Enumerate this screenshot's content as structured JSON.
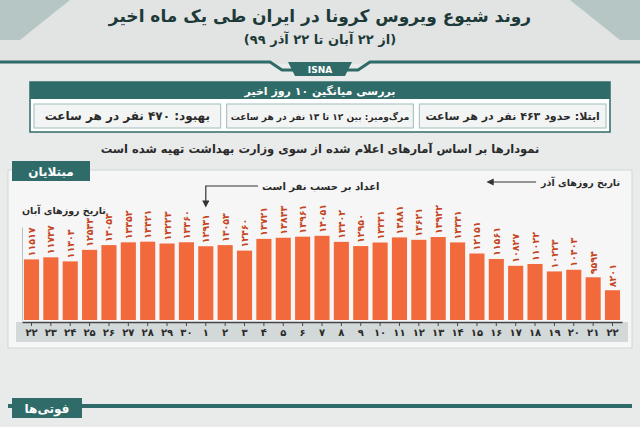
{
  "chart_data": {
    "type": "bar",
    "title": "روند شیوع ویروس کرونا در ایران طی یک ماه اخیر",
    "subtitle": "(از ۲۲ آبان تا ۲۲ آذر ۹۹)",
    "categories": [
      "۲۲",
      "۲۳",
      "۲۴",
      "۲۵",
      "۲۶",
      "۲۷",
      "۲۸",
      "۲۹",
      "۳۰",
      "۱",
      "۲",
      "۳",
      "۴",
      "۵",
      "۶",
      "۷",
      "۸",
      "۹",
      "۱۰",
      "۱۱",
      "۱۲",
      "۱۳",
      "۱۴",
      "۱۵",
      "۱۶",
      "۱۷",
      "۱۸",
      "۱۹",
      "۲۰",
      "۲۱",
      "۲۲"
    ],
    "values": [
      11517,
      11737,
      11303,
      12543,
      13053,
      13352,
      13421,
      13223,
      13360,
      12931,
      13053,
      12460,
      13721,
      13843,
      13961,
      14051,
      13402,
      12950,
      13331,
      13881,
      13621,
      13922,
      13341,
      12151,
      11561,
      10827,
      11022,
      10223,
      10403,
      9594,
      8201
    ],
    "value_labels": [
      "۱۱۵۱۷",
      "۱۱۷۳۷",
      "۱۱۳۰۳",
      "۱۲۵۴۳",
      "۱۳۰۵۳",
      "۱۳۳۵۲",
      "۱۳۴۲۱",
      "۱۳۲۲۳",
      "۱۳۳۶۰",
      "۱۲۹۳۱",
      "۱۳۰۵۳",
      "۱۲۴۶۰",
      "۱۳۷۲۱",
      "۱۳۸۴۳",
      "۱۳۹۶۱",
      "۱۴۰۵۱",
      "۱۳۴۰۲",
      "۱۲۹۵۰",
      "۱۳۳۳۱",
      "۱۳۸۸۱",
      "۱۳۶۲۱",
      "۱۳۹۲۲",
      "۱۳۳۴۱",
      "۱۲۱۵۱",
      "۱۱۵۶۱",
      "۱۰۸۲۷",
      "۱۱۰۲۲",
      "۱۰۲۲۳",
      "۱۰۴۰۳",
      "۹۵۹۴",
      "۸۲۰۱"
    ],
    "color": "#f26a3c",
    "ylim": [
      5000,
      15000
    ],
    "yticks": [],
    "tick_labels": "x",
    "data_labels": true,
    "grid": false,
    "annotations": [
      "اعداد بر حسب نفر است",
      "تاریخ روزهای آبان",
      "تاریخ روزهای آذر"
    ]
  },
  "infographic": {
    "source": "ISNA",
    "summary_title": "بررسی میانگین ۱۰ روز اخیر",
    "stats": [
      "ابتلا: حدود ۴۶۳ نفر در هر ساعت",
      "مرگ‌ومیر: بین ۱۲ تا ۱۳ نفر در هر ساعت",
      "بهبود: ۴۷۰ نفر در هر ساعت"
    ],
    "note": "نمودارها بر اساس آمارهای اعلام شده از سوی وزارت بهداشت تهیه شده است",
    "section_title": "مبتلایان",
    "next_section": "فوتی‌ها"
  }
}
